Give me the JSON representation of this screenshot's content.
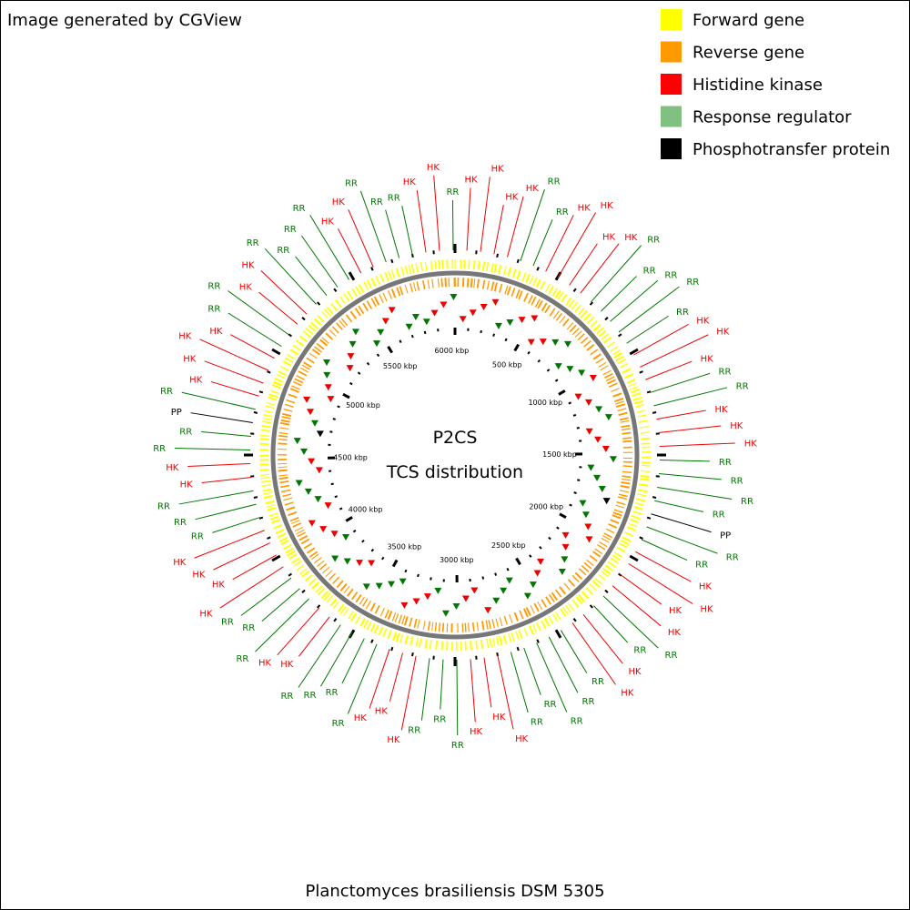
{
  "header": {
    "credit": "Image generated by CGView"
  },
  "legend": [
    {
      "label": "Forward gene",
      "color": "#ffff00"
    },
    {
      "label": "Reverse gene",
      "color": "#ff9900"
    },
    {
      "label": "Histidine kinase",
      "color": "#ff0000"
    },
    {
      "label": "Response regulator",
      "color": "#80c080"
    },
    {
      "label": "Phosphotransfer protein",
      "color": "#000000"
    }
  ],
  "center": {
    "line1": "P2CS",
    "line2": "TCS distribution"
  },
  "scale_labels": [
    "500 kbp",
    "1000 kbp",
    "1500 kbp",
    "2000 kbp",
    "2500 kbp",
    "3000 kbp",
    "3500 kbp",
    "4000 kbp",
    "4500 kbp",
    "5000 kbp",
    "5500 kbp",
    "6000 kbp"
  ],
  "label_colors": {
    "HK": "#ee0000",
    "RR": "#007700",
    "PP": "#000000"
  },
  "feature_labels": [
    "RR",
    "HK",
    "HK",
    "RR",
    "HK",
    "HK",
    "HK",
    "HK",
    "RR",
    "RR",
    "HK",
    "HK",
    "HK",
    "HK",
    "RR",
    "RR",
    "RR",
    "RR",
    "RR",
    "HK",
    "HK",
    "HK",
    "RR",
    "RR",
    "HK",
    "HK",
    "HK",
    "RR",
    "RR",
    "RR",
    "RR",
    "PP",
    "RR",
    "RR",
    "HK",
    "HK",
    "HK",
    "HK",
    "RR",
    "RR",
    "HK",
    "HK",
    "RR",
    "RR",
    "RR",
    "RR",
    "RR",
    "HK",
    "HK",
    "HK",
    "RR",
    "RR",
    "RR",
    "HK",
    "HK",
    "HK",
    "RR",
    "RR",
    "RR",
    "RR",
    "HK",
    "HK",
    "RR",
    "RR",
    "RR",
    "HK",
    "HK",
    "HK",
    "HK",
    "RR",
    "RR",
    "RR",
    "HK",
    "HK",
    "RR",
    "RR",
    "PP",
    "RR",
    "HK",
    "HK",
    "HK",
    "HK",
    "RR",
    "RR",
    "HK",
    "HK",
    "RR",
    "RR",
    "RR",
    "RR",
    "HK",
    "HK",
    "RR",
    "RR"
  ],
  "footer": {
    "organism": "Planctomyces brasiliensis DSM 5305"
  }
}
